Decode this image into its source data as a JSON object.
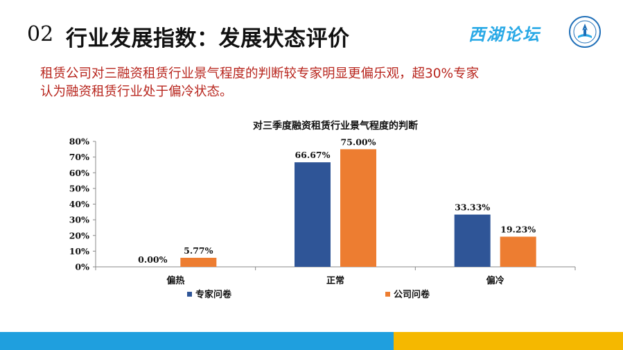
{
  "header": {
    "section_number": "02",
    "title": "行业发展指数：发展状态评价",
    "brand": "西湖论坛",
    "seal_icon": "forum-seal-icon"
  },
  "summary": {
    "line1": "租赁公司对三融资租赁行业景气程度的判断较专家明显更偏乐观，超30%专家",
    "line2": "认为融资租赁行业处于偏冷状态。"
  },
  "chart_data": {
    "type": "bar",
    "title": "对三季度融资租赁行业景气程度的判断",
    "categories": [
      "偏热",
      "正常",
      "偏冷"
    ],
    "series": [
      {
        "name": "专家问卷",
        "values": [
          0.0,
          66.67,
          33.33
        ],
        "labels": [
          "0.00%",
          "66.67%",
          "33.33%"
        ],
        "color": "#2f5597"
      },
      {
        "name": "公司问卷",
        "values": [
          5.77,
          75.0,
          19.23
        ],
        "labels": [
          "5.77%",
          "75.00%",
          "19.23%"
        ],
        "color": "#ed7d31"
      }
    ],
    "ylim": [
      0,
      80
    ],
    "yticks": [
      "0%",
      "10%",
      "20%",
      "30%",
      "40%",
      "50%",
      "60%",
      "70%",
      "80%"
    ],
    "legend_position": "bottom",
    "grid": false
  },
  "colors": {
    "title_red": "#b8261e",
    "footer_blue": "#1f9fde",
    "footer_yellow": "#f5b800",
    "brand_blue": "#29a9e6"
  }
}
